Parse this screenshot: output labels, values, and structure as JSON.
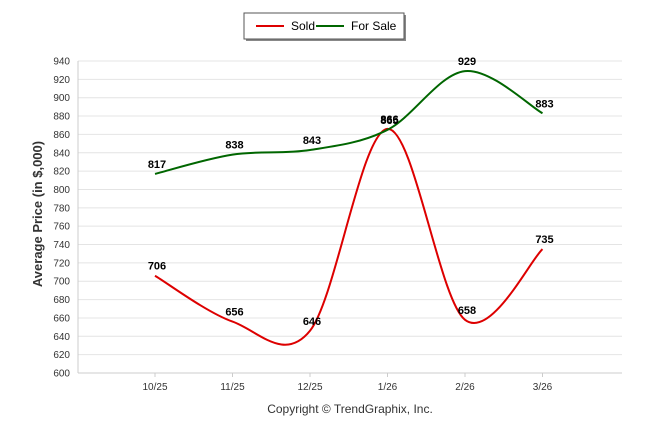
{
  "chart_data": {
    "type": "line",
    "categories": [
      "10/25",
      "11/25",
      "12/25",
      "1/26",
      "2/26",
      "3/26"
    ],
    "series": [
      {
        "name": "Sold",
        "color": "#dd0000",
        "values": [
          706,
          656,
          646,
          866,
          658,
          735
        ]
      },
      {
        "name": "For Sale",
        "color": "#006600",
        "values": [
          817,
          838,
          843,
          865,
          929,
          883
        ]
      }
    ],
    "ylabel": "Average Price (in $,000)",
    "xlabel": "",
    "ylim": [
      600,
      940
    ],
    "yticks": [
      600,
      620,
      640,
      660,
      680,
      700,
      720,
      740,
      760,
      780,
      800,
      820,
      840,
      860,
      880,
      900,
      920,
      940
    ],
    "grid": true,
    "legend_position": "top-center",
    "smooth": true
  },
  "footer": {
    "copyright": "Copyright © TrendGraphix, Inc."
  }
}
